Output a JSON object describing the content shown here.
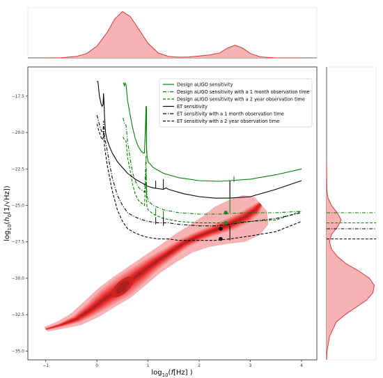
{
  "chart_data": {
    "type": "line",
    "xlabel_parts": [
      "log",
      "10",
      "(",
      "f",
      "[Hz] )"
    ],
    "ylabel_parts": [
      "log",
      "10",
      "(",
      "h",
      "0",
      "[1/√Hz])"
    ],
    "xlim": [
      -1.35,
      4.3
    ],
    "ylim": [
      -35.6,
      -15.5
    ],
    "x_ticks": [
      -1,
      0,
      1,
      2,
      3,
      4
    ],
    "x_tick_labels": [
      "−1",
      "0",
      "1",
      "2",
      "3",
      "4"
    ],
    "y_ticks": [
      -17.5,
      -20.0,
      -22.5,
      -25.0,
      -27.5,
      -30.0,
      -32.5,
      -35.0
    ],
    "y_tick_labels": [
      "−17.5",
      "−20.0",
      "−22.5",
      "−25.0",
      "−27.5",
      "−30.0",
      "−32.5",
      "−35.0"
    ],
    "legend_position": "upper-right",
    "series": [
      {
        "name": "Design aLIGO sensitivity",
        "color": "#008000",
        "style": "solid",
        "x": [
          0.51,
          0.52,
          0.54,
          0.55,
          0.57,
          0.6,
          0.65,
          0.7,
          0.75,
          0.8,
          0.85,
          0.9,
          0.93,
          0.95,
          0.96,
          0.97,
          0.98,
          1.0,
          1.1,
          1.3,
          1.6,
          2.0,
          2.4,
          2.6,
          3.0,
          3.5,
          4.0
        ],
        "y": [
          -16.6,
          -16.6,
          -16.8,
          -16.6,
          -16.7,
          -17.8,
          -18.8,
          -19.7,
          -20.4,
          -20.9,
          -21.2,
          -21.4,
          -21.4,
          -19.6,
          -18.2,
          -20.8,
          -21.6,
          -22.0,
          -22.4,
          -22.8,
          -23.1,
          -23.3,
          -23.35,
          -23.3,
          -23.2,
          -22.9,
          -22.5
        ]
      },
      {
        "name": "Design aLIGO sensitivity with a 1 month observation time",
        "color": "#008000",
        "style": "dashdot",
        "x": [
          0.51,
          0.54,
          0.57,
          0.6,
          0.65,
          0.7,
          0.75,
          0.8,
          0.85,
          0.9,
          0.93,
          0.95,
          0.96,
          0.97,
          0.98,
          1.0,
          1.1,
          1.3,
          1.6,
          2.0,
          2.4,
          2.6,
          3.0,
          3.5,
          4.0
        ],
        "y": [
          -19.0,
          -19.4,
          -19.5,
          -20.6,
          -21.8,
          -22.8,
          -23.3,
          -23.7,
          -23.9,
          -24.0,
          -24.1,
          -22.6,
          -21.6,
          -23.6,
          -24.3,
          -24.7,
          -25.0,
          -25.3,
          -25.5,
          -25.6,
          -25.6,
          -25.55,
          -25.5,
          -25.5,
          -25.4
        ]
      },
      {
        "name": "Design aLIGO sensitivity with a 2 year observation time",
        "color": "#008000",
        "style": "dashed",
        "x": [
          0.51,
          0.54,
          0.57,
          0.6,
          0.65,
          0.7,
          0.75,
          0.8,
          0.85,
          0.9,
          0.93,
          0.95,
          0.96,
          0.97,
          0.98,
          1.0,
          1.1,
          1.3,
          1.6,
          2.0,
          2.4,
          2.6,
          3.0,
          3.5,
          4.0
        ],
        "y": [
          -20.3,
          -20.5,
          -20.6,
          -21.7,
          -22.6,
          -23.6,
          -24.2,
          -24.6,
          -24.8,
          -24.9,
          -25.0,
          -23.6,
          -22.6,
          -24.5,
          -25.1,
          -25.3,
          -25.6,
          -25.9,
          -26.1,
          -26.2,
          -26.2,
          -26.2,
          -26.1,
          -26.0,
          -25.4
        ]
      },
      {
        "name": "ET sensitivity",
        "color": "#000000",
        "style": "solid",
        "x": [
          0.0,
          0.02,
          0.05,
          0.08,
          0.1,
          0.12,
          0.13,
          0.14,
          0.15,
          0.17,
          0.2,
          0.25,
          0.3,
          0.35,
          0.4,
          0.5,
          0.6,
          0.75,
          0.9,
          1.0,
          1.1,
          1.2,
          1.3,
          1.35,
          1.4,
          1.5,
          1.7,
          2.0,
          2.3,
          2.6,
          3.0,
          3.5,
          4.0
        ],
        "y": [
          -16.5,
          -16.5,
          -17.5,
          -18.0,
          -18.2,
          -18.1,
          -17.3,
          -18.0,
          -19.0,
          -20.0,
          -20.5,
          -21.0,
          -21.4,
          -21.7,
          -22.0,
          -22.4,
          -22.8,
          -23.2,
          -23.5,
          -23.7,
          -23.8,
          -23.85,
          -23.9,
          -23.8,
          -23.9,
          -24.0,
          -24.2,
          -24.4,
          -24.5,
          -24.5,
          -24.4,
          -23.9,
          -23.3
        ]
      },
      {
        "name": "ET sensitivity with a 1 month observation time",
        "color": "#000000",
        "style": "dashdot",
        "x": [
          0.0,
          0.03,
          0.06,
          0.1,
          0.12,
          0.13,
          0.15,
          0.2,
          0.25,
          0.3,
          0.4,
          0.5,
          0.6,
          0.75,
          0.9,
          1.0,
          1.2,
          1.4,
          1.6,
          2.0,
          2.3,
          2.6,
          3.0,
          3.5,
          4.0
        ],
        "y": [
          -18.8,
          -19.2,
          -19.6,
          -20.0,
          -19.9,
          -19.2,
          -20.3,
          -21.2,
          -22.2,
          -23.1,
          -24.3,
          -25.0,
          -25.5,
          -25.8,
          -26.0,
          -26.1,
          -26.2,
          -26.2,
          -26.3,
          -26.4,
          -26.4,
          -26.3,
          -26.1,
          -25.9,
          -25.5
        ]
      },
      {
        "name": "ET sensitivity with a 2 year observation time",
        "color": "#000000",
        "style": "dashed",
        "x": [
          0.0,
          0.03,
          0.06,
          0.1,
          0.12,
          0.13,
          0.15,
          0.2,
          0.25,
          0.3,
          0.4,
          0.5,
          0.6,
          0.75,
          0.9,
          1.0,
          1.2,
          1.4,
          1.6,
          2.0,
          2.3,
          2.6,
          3.0,
          3.5,
          4.0
        ],
        "y": [
          -19.4,
          -19.8,
          -20.1,
          -20.5,
          -20.4,
          -19.9,
          -21.0,
          -22.2,
          -23.1,
          -24.0,
          -25.3,
          -26.1,
          -26.6,
          -26.9,
          -27.1,
          -27.2,
          -27.3,
          -27.3,
          -27.4,
          -27.4,
          -27.4,
          -27.3,
          -27.1,
          -26.8,
          -26.1
        ]
      }
    ],
    "spikes": [
      {
        "color": "#008000",
        "x": 0.97,
        "y_base": -21.4,
        "y_top": -18.2
      },
      {
        "color": "#008000",
        "x": 2.6,
        "y_base": -25.5,
        "y_top": -23.3
      },
      {
        "color": "#008000",
        "x": 2.68,
        "y_base": -23.4,
        "y_top": -23.0
      },
      {
        "color": "#008000",
        "x": 0.97,
        "y_base": -24.5,
        "y_top": -23.4
      },
      {
        "color": "#008000",
        "x": 1.15,
        "y_base": -25.7,
        "y_top": -25.2
      },
      {
        "color": "#008000",
        "x": 1.3,
        "y_base": -25.9,
        "y_top": -25.4
      },
      {
        "color": "#000000",
        "x": 1.15,
        "y_base": -23.85,
        "y_top": -23.3
      },
      {
        "color": "#000000",
        "x": 1.3,
        "y_base": -23.9,
        "y_top": -23.2
      },
      {
        "color": "#000000",
        "x": 2.6,
        "y_base": -24.5,
        "y_top": -23.3
      },
      {
        "color": "#000000",
        "x": 2.6,
        "y_base": -27.4,
        "y_top": -26.4
      },
      {
        "color": "#000000",
        "x": 1.15,
        "y_base": -26.3,
        "y_top": -25.8
      },
      {
        "color": "#000000",
        "x": 1.3,
        "y_base": -26.4,
        "y_top": -25.8
      }
    ],
    "markers": [
      {
        "x": 2.52,
        "y": -25.5,
        "color": "#2e7d32"
      },
      {
        "x": 2.52,
        "y": -26.2,
        "color": "#2e7d32"
      },
      {
        "x": 2.42,
        "y": -26.6,
        "color": "#111111"
      },
      {
        "x": 2.42,
        "y": -27.3,
        "color": "#111111"
      }
    ],
    "density": {
      "color": "#ff0000",
      "fill_colors": [
        "#f7b3b3",
        "#f59a9a",
        "#f47f7f",
        "#f26464",
        "#ef4545",
        "#e62a2a",
        "#cc2424",
        "#a82020"
      ],
      "ridge": [
        {
          "x": -1.0,
          "y": -33.5,
          "w": 0.15
        },
        {
          "x": -0.7,
          "y": -33.2,
          "w": 0.25
        },
        {
          "x": -0.4,
          "y": -32.8,
          "w": 0.4
        },
        {
          "x": -0.1,
          "y": -32.1,
          "w": 0.55
        },
        {
          "x": 0.2,
          "y": -31.3,
          "w": 0.65
        },
        {
          "x": 0.5,
          "y": -30.6,
          "w": 0.7
        },
        {
          "x": 0.8,
          "y": -29.8,
          "w": 0.65
        },
        {
          "x": 1.1,
          "y": -29.0,
          "w": 0.6
        },
        {
          "x": 1.4,
          "y": -28.3,
          "w": 0.6
        },
        {
          "x": 1.7,
          "y": -27.6,
          "w": 0.65
        },
        {
          "x": 2.0,
          "y": -27.1,
          "w": 0.75
        },
        {
          "x": 2.3,
          "y": -26.7,
          "w": 0.95
        },
        {
          "x": 2.6,
          "y": -26.3,
          "w": 1.2
        },
        {
          "x": 2.9,
          "y": -25.8,
          "w": 1.2
        },
        {
          "x": 3.1,
          "y": -25.3,
          "w": 1.0
        },
        {
          "x": 3.2,
          "y": -24.9,
          "w": 0.5
        }
      ],
      "core": {
        "x": 0.5,
        "y": -30.6
      }
    },
    "marginal_x": {
      "x": [
        -1.0,
        -0.7,
        -0.4,
        -0.2,
        0.0,
        0.2,
        0.35,
        0.5,
        0.65,
        0.8,
        1.0,
        1.2,
        1.4,
        1.6,
        1.8,
        2.0,
        2.2,
        2.4,
        2.55,
        2.7,
        2.85,
        3.0,
        3.2,
        3.5,
        4.0
      ],
      "density": [
        0.0,
        0.005,
        0.03,
        0.09,
        0.24,
        0.52,
        0.8,
        0.95,
        0.85,
        0.62,
        0.3,
        0.1,
        0.03,
        0.015,
        0.02,
        0.04,
        0.06,
        0.1,
        0.2,
        0.26,
        0.2,
        0.09,
        0.02,
        0.0,
        0.0
      ]
    },
    "marginal_y": {
      "y": [
        -35.6,
        -35.0,
        -34.0,
        -33.0,
        -32.5,
        -32.0,
        -31.5,
        -31.0,
        -30.5,
        -30.0,
        -29.5,
        -29.0,
        -28.5,
        -28.0,
        -27.5,
        -27.0,
        -26.5,
        -26.0,
        -25.5,
        -25.0,
        -24.5,
        -24.0,
        -22.0
      ],
      "density": [
        0.0,
        0.01,
        0.06,
        0.2,
        0.38,
        0.6,
        0.82,
        0.95,
        0.98,
        0.88,
        0.66,
        0.4,
        0.22,
        0.1,
        0.06,
        0.1,
        0.22,
        0.3,
        0.22,
        0.1,
        0.03,
        0.005,
        0.0
      ]
    }
  }
}
